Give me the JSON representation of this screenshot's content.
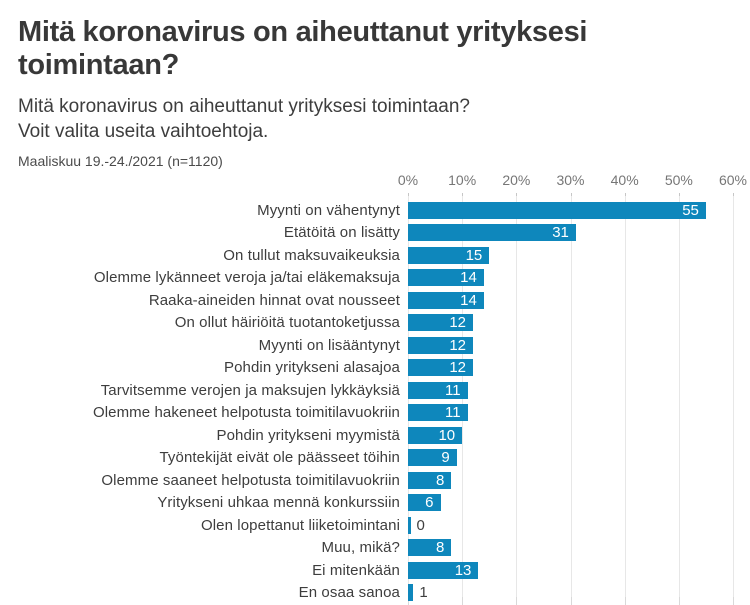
{
  "header": {
    "title_line1": "Mitä koronavirus on aiheuttanut yrityksesi",
    "title_line2": "toimintaan?",
    "subtitle_line1": "Mitä koronavirus on aiheuttanut yrityksesi toimintaan?",
    "subtitle_line2": "Voit valita useita vaihtoehtoja.",
    "period": "Maaliskuu 19.-24./2021 (n=1120)"
  },
  "chart_data": {
    "type": "bar",
    "orientation": "horizontal",
    "title": "Mitä koronavirus on aiheuttanut yrityksesi toimintaan?",
    "categories": [
      "Myynti on vähentynyt",
      "Etätöitä on lisätty",
      "On tullut maksuvaikeuksia",
      "Olemme lykänneet veroja ja/tai eläkemaksuja",
      "Raaka-aineiden hinnat ovat nousseet",
      "On ollut häiriöitä tuotantoketjussa",
      "Myynti on lisääntynyt",
      "Pohdin yritykseni alasajoa",
      "Tarvitsemme verojen ja maksujen lykkäyksiä",
      "Olemme hakeneet helpotusta toimitilavuokriin",
      "Pohdin yritykseni myymistä",
      "Työntekijät eivät ole päässeet töihin",
      "Olemme saaneet helpotusta toimitilavuokriin",
      "Yritykseni uhkaa mennä konkurssiin",
      "Olen lopettanut liiketoimintani",
      "Muu, mikä?",
      "Ei mitenkään",
      "En osaa sanoa"
    ],
    "values": [
      55,
      31,
      15,
      14,
      14,
      12,
      12,
      12,
      11,
      11,
      10,
      9,
      8,
      6,
      0,
      8,
      13,
      1
    ],
    "unit": "%",
    "xlabel": "",
    "ylabel": "",
    "x_axis": {
      "position": "top",
      "min": 0,
      "max": 60,
      "tick_labels": [
        "0%",
        "10%",
        "20%",
        "30%",
        "40%",
        "50%",
        "60%"
      ]
    },
    "grid": true,
    "colors": {
      "bar": "#0e87bc",
      "value_label_inside": "#ffffff",
      "value_label_outside": "#3f3f3f",
      "gridline": "#e7e7e7",
      "axis_text": "#767676",
      "category_text": "#3d3d3d"
    }
  }
}
